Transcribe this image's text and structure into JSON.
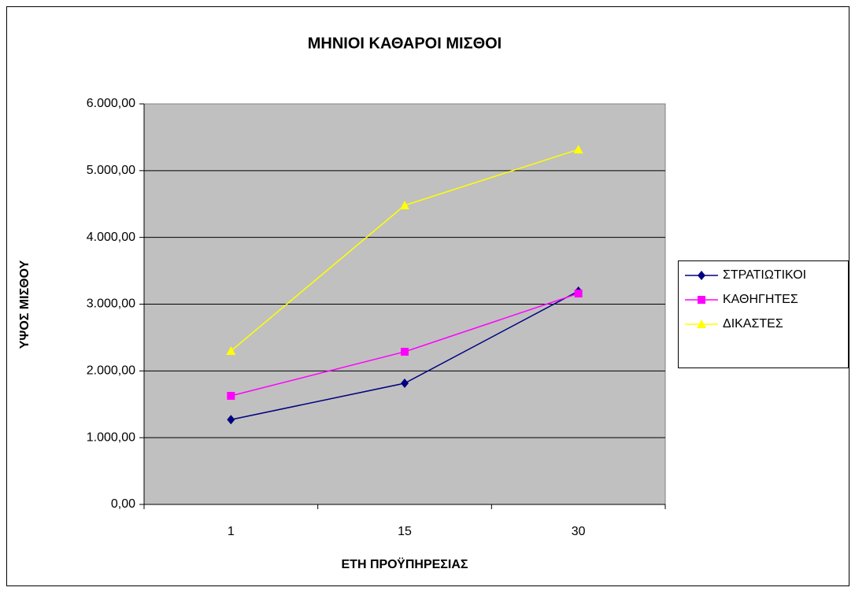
{
  "chart_data": {
    "type": "line",
    "title": "ΜΗΝΙΟΙ ΚΑΘΑΡΟΙ ΜΙΣΘΟΙ",
    "x_label": "ΕΤΗ ΠΡΟΫΠΗΡΕΣΙΑΣ",
    "y_label": "ΥΨΟΣ ΜΙΣΘΟΥ",
    "categories": [
      "1",
      "15",
      "30"
    ],
    "series": [
      {
        "name": "ΣΤΡΑΤΙΩΤΙΚΟΙ",
        "color": "#000080",
        "marker": "diamond",
        "values": [
          1270,
          1815,
          3195
        ]
      },
      {
        "name": "ΚΑΘΗΓΗΤΕΣ",
        "color": "#ff00ff",
        "marker": "square",
        "values": [
          1627,
          2287,
          3160
        ]
      },
      {
        "name": "ΔΙΚΑΣΤΕΣ",
        "color": "#ffff00",
        "marker": "triangle",
        "values": [
          2299,
          4480,
          5317
        ]
      }
    ],
    "ylim": [
      0,
      6000
    ],
    "yticks": [
      {
        "value": 0,
        "label": "0,00"
      },
      {
        "value": 1000,
        "label": "1.000,00"
      },
      {
        "value": 2000,
        "label": "2.000,00"
      },
      {
        "value": 3000,
        "label": "3.000,00"
      },
      {
        "value": 4000,
        "label": "4.000,00"
      },
      {
        "value": 5000,
        "label": "5.000,00"
      },
      {
        "value": 6000,
        "label": "6.000,00"
      }
    ],
    "grid": true,
    "legend": "right"
  }
}
